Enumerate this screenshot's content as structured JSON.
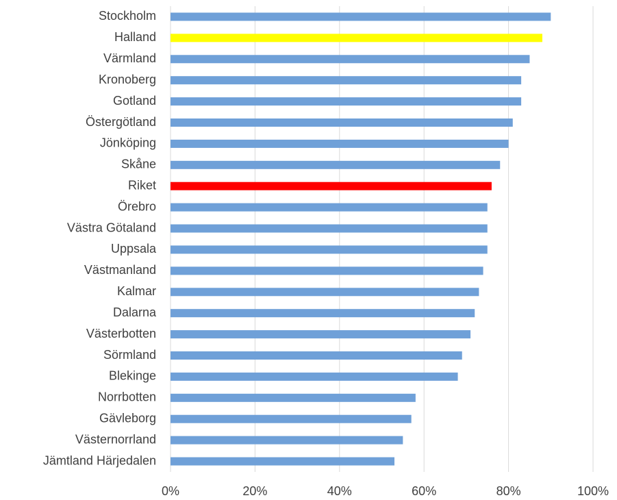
{
  "chart_data": {
    "type": "bar",
    "orientation": "horizontal",
    "categories": [
      "Stockholm",
      "Halland",
      "Värmland",
      "Kronoberg",
      "Gotland",
      "Östergötland",
      "Jönköping",
      "Skåne",
      "Riket",
      "Örebro",
      "Västra Götaland",
      "Uppsala",
      "Västmanland",
      "Kalmar",
      "Dalarna",
      "Västerbotten",
      "Sörmland",
      "Blekinge",
      "Norrbotten",
      "Gävleborg",
      "Västernorrland",
      "Jämtland Härjedalen"
    ],
    "values": [
      90,
      88,
      85,
      83,
      83,
      81,
      80,
      78,
      76,
      75,
      75,
      75,
      74,
      73,
      72,
      71,
      69,
      68,
      58,
      57,
      55,
      53
    ],
    "colors": [
      "#6fa0d8",
      "#ffff00",
      "#6fa0d8",
      "#6fa0d8",
      "#6fa0d8",
      "#6fa0d8",
      "#6fa0d8",
      "#6fa0d8",
      "#ff0000",
      "#6fa0d8",
      "#6fa0d8",
      "#6fa0d8",
      "#6fa0d8",
      "#6fa0d8",
      "#6fa0d8",
      "#6fa0d8",
      "#6fa0d8",
      "#6fa0d8",
      "#6fa0d8",
      "#6fa0d8",
      "#6fa0d8",
      "#6fa0d8"
    ],
    "xlim": [
      0,
      100
    ],
    "xticks": [
      {
        "value": 0,
        "label": "0%"
      },
      {
        "value": 20,
        "label": "20%"
      },
      {
        "value": 40,
        "label": "40%"
      },
      {
        "value": 60,
        "label": "60%"
      },
      {
        "value": 80,
        "label": "80%"
      },
      {
        "value": 100,
        "label": "100%"
      }
    ],
    "grid": true
  }
}
